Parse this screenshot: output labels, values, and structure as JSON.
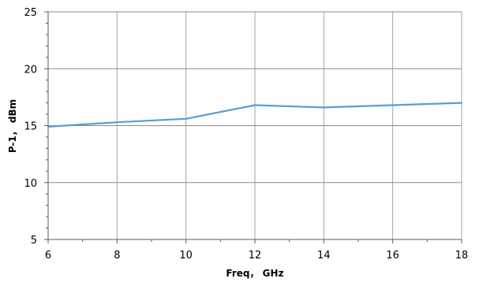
{
  "chart_data": {
    "type": "line",
    "title": "",
    "xlabel": "Freq， GHz",
    "ylabel": "P-1， dBm",
    "xlim": [
      6,
      18
    ],
    "ylim": [
      5,
      25
    ],
    "xticks": [
      6,
      8,
      10,
      12,
      14,
      16,
      18
    ],
    "yticks": [
      5,
      10,
      15,
      20,
      25
    ],
    "grid": true,
    "legend": "none",
    "series": [
      {
        "color": "#5b9bd5",
        "x": [
          6,
          8,
          10,
          12,
          14,
          16,
          18
        ],
        "y": [
          14.9,
          15.3,
          15.6,
          16.8,
          16.6,
          16.8,
          17.0
        ]
      }
    ]
  }
}
